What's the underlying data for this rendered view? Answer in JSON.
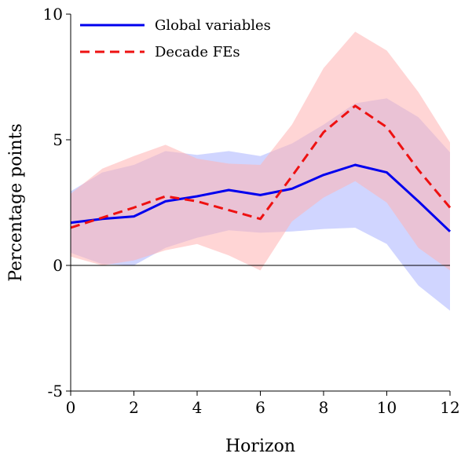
{
  "chart_data": {
    "type": "line",
    "xlabel": "Horizon",
    "ylabel": "Percentage points",
    "xlim": [
      0,
      12
    ],
    "ylim": [
      -5,
      10
    ],
    "x": [
      0,
      1,
      2,
      3,
      4,
      5,
      6,
      7,
      8,
      9,
      10,
      11,
      12
    ],
    "xticks": [
      0,
      2,
      4,
      6,
      8,
      10,
      12
    ],
    "yticks": [
      -5,
      0,
      5,
      10
    ],
    "grid": false,
    "legend_position": "top-left",
    "zero_line": true,
    "series": [
      {
        "name": "Global variables",
        "color": "#0000ee",
        "dash": "solid",
        "values": [
          1.7,
          1.85,
          1.95,
          2.55,
          2.75,
          3.0,
          2.8,
          3.05,
          3.6,
          4.0,
          3.7,
          2.55,
          1.35
        ],
        "lower": [
          0.5,
          0.05,
          0.0,
          0.7,
          1.1,
          1.4,
          1.3,
          1.35,
          1.45,
          1.5,
          0.85,
          -0.8,
          -1.8
        ],
        "upper": [
          2.95,
          3.7,
          4.0,
          4.55,
          4.4,
          4.55,
          4.35,
          4.85,
          5.6,
          6.45,
          6.65,
          5.9,
          4.5
        ],
        "band_color": "#aab2ff"
      },
      {
        "name": "Decade FEs",
        "color": "#ee1111",
        "dash": "dashed",
        "values": [
          1.5,
          1.9,
          2.3,
          2.75,
          2.55,
          2.2,
          1.85,
          3.55,
          5.3,
          6.35,
          5.5,
          3.8,
          2.3
        ],
        "lower": [
          0.35,
          0.0,
          0.2,
          0.6,
          0.85,
          0.4,
          -0.2,
          1.75,
          2.7,
          3.35,
          2.5,
          0.7,
          -0.2
        ],
        "upper": [
          2.85,
          3.85,
          4.35,
          4.8,
          4.25,
          4.05,
          4.0,
          5.6,
          7.85,
          9.3,
          8.55,
          6.9,
          4.9
        ],
        "band_color": "#ffb3b3"
      }
    ]
  }
}
